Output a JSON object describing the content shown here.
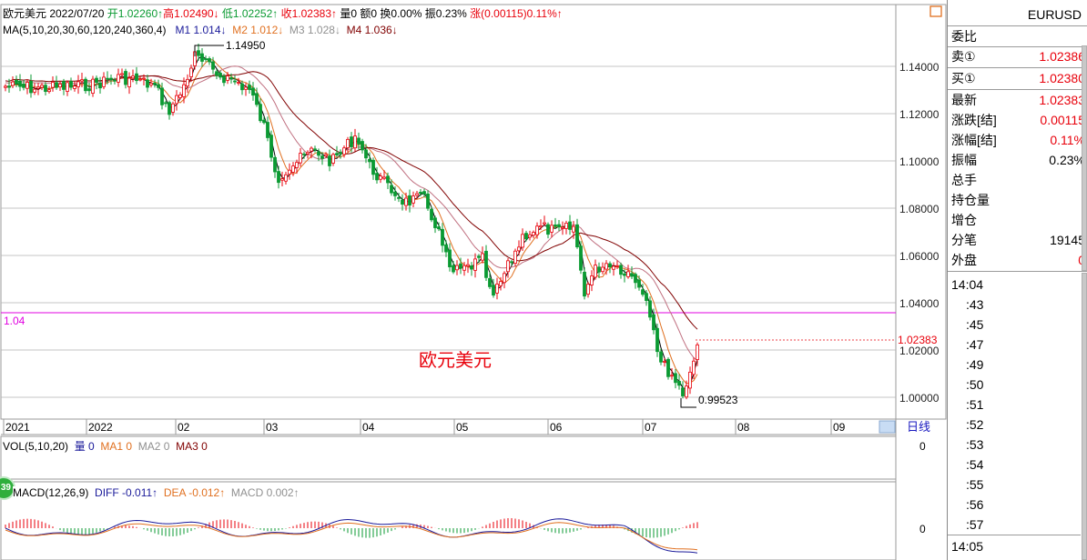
{
  "header": {
    "title": "欧元美元 2022/07/20",
    "open": "开1.02260↑",
    "high": "高1.02490↓",
    "low": "低1.02252↑",
    "close": "收1.02383↑",
    "volume": "量0",
    "amount": "额0",
    "turnover": "换0.00%",
    "amplitude": "振0.23%",
    "change": "涨(0.00115)0.11%↑"
  },
  "ma_legend": {
    "params": "MA(5,10,20,30,60,120,240,360,4)",
    "m1": "M1 1.014↓",
    "m2": "M2 1.012↓",
    "m3": "M3 1.028↓",
    "m4": "M4 1.036↓"
  },
  "price_axis": {
    "ticks": [
      "1.14000",
      "1.12000",
      "1.10000",
      "1.08000",
      "1.06000",
      "1.04000",
      "1.02000",
      "1.00000"
    ],
    "last_price": "1.02383"
  },
  "annotations": {
    "high_marker": "1.14950",
    "low_marker": "0.99523",
    "hline_label": "1.04",
    "watermark": "欧元美元"
  },
  "time_axis": {
    "labels": [
      "2021",
      "2022",
      "02",
      "03",
      "04",
      "05",
      "06",
      "07",
      "08",
      "09"
    ],
    "period_button": "日线"
  },
  "vol_legend": {
    "params": "VOL(5,10,20)",
    "vol": "量 0",
    "ma1": "MA1 0",
    "ma2": "MA2 0",
    "ma3": "MA3 0",
    "axis_value": "0"
  },
  "macd_legend": {
    "params": "MACD(12,26,9)",
    "diff": "DIFF -0.011↑",
    "dea": "DEA -0.012↑",
    "macd": "MACD 0.002↑",
    "axis_value": "0",
    "badge": "39"
  },
  "quote_panel": {
    "symbol": "EURUSD",
    "rows": [
      {
        "key": "委比",
        "value": ""
      },
      {
        "key": "卖①",
        "value": "1.02386"
      },
      {
        "key": "买①",
        "value": "1.02380"
      },
      {
        "key": "最新",
        "value": "1.02383"
      },
      {
        "key": "涨跌[结]",
        "value": "0.00115"
      },
      {
        "key": "涨幅[结]",
        "value": "0.11%"
      },
      {
        "key": "振幅",
        "value": "0.23%"
      },
      {
        "key": "总手",
        "value": ""
      },
      {
        "key": "持仓量",
        "value": ""
      },
      {
        "key": "增仓",
        "value": ""
      },
      {
        "key": "分笔",
        "value": "19145"
      },
      {
        "key": "外盘",
        "value": "0"
      }
    ],
    "tick_hour_1": "14:04",
    "tick_seconds": [
      ":43",
      ":45",
      ":47",
      ":49",
      ":50",
      ":51",
      ":52",
      ":53",
      ":54",
      ":55",
      ":56",
      ":57"
    ],
    "tick_hour_2": "14:05"
  },
  "colors": {
    "up": "#e8000b",
    "down": "#0a9a32",
    "ma1": "#000000",
    "ma2": "#e07020",
    "ma3": "#c07080",
    "ma4": "#800000",
    "hline": "#e000e0",
    "grid": "#b0b0b0"
  }
}
